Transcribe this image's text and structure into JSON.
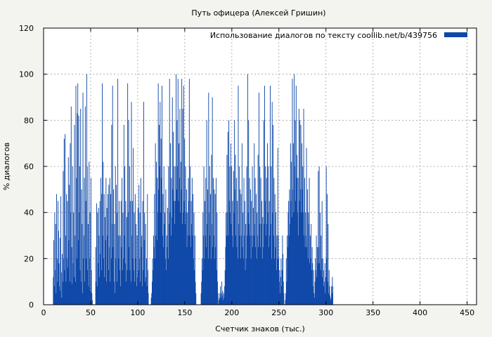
{
  "chart_data": {
    "type": "bar",
    "title": "Путь офицера (Алексей Гришин)",
    "xlabel": "Счетчик знаков (тыс.)",
    "ylabel": "% диалогов",
    "xlim": [
      0,
      460
    ],
    "ylim": [
      0,
      120
    ],
    "xticks": [
      "0",
      "50",
      "100",
      "150",
      "200",
      "250",
      "300",
      "350",
      "400",
      "450"
    ],
    "yticks": [
      "0",
      "20",
      "40",
      "60",
      "80",
      "100",
      "120"
    ],
    "grid": true,
    "legend_position": "top-right",
    "series": [
      {
        "name": "Использование диалогов по тексту  coollib.net/b/439756",
        "color": "#0d47a8",
        "x_start": 10,
        "x_step": 0.5,
        "values": [
          12,
          28,
          8,
          40,
          15,
          35,
          5,
          48,
          20,
          10,
          45,
          32,
          18,
          8,
          29,
          6,
          47,
          14,
          3,
          22,
          10,
          58,
          20,
          72,
          15,
          74,
          30,
          10,
          48,
          20,
          45,
          16,
          64,
          28,
          52,
          10,
          70,
          40,
          86,
          25,
          9,
          60,
          18,
          40,
          12,
          78,
          30,
          10,
          95,
          55,
          20,
          83,
          96,
          28,
          82,
          40,
          60,
          15,
          85,
          10,
          50,
          35,
          5,
          92,
          20,
          30,
          55,
          10,
          86,
          45,
          20,
          100,
          60,
          15,
          35,
          8,
          62,
          20,
          40,
          6,
          55,
          15,
          5,
          2,
          0,
          0,
          0,
          0,
          0,
          0,
          25,
          10,
          44,
          8,
          40,
          18,
          42,
          30,
          12,
          45,
          22,
          55,
          15,
          48,
          96,
          30,
          62,
          20,
          48,
          12,
          38,
          28,
          55,
          10,
          42,
          30,
          48,
          15,
          52,
          25,
          55,
          10,
          48,
          20,
          78,
          35,
          95,
          25,
          50,
          10,
          35,
          5,
          60,
          20,
          52,
          10,
          40,
          98,
          30,
          20,
          45,
          15,
          30,
          8,
          45,
          25,
          55,
          15,
          40,
          20,
          78,
          30,
          60,
          18,
          45,
          10,
          38,
          15,
          96,
          40,
          80,
          25,
          60,
          15,
          45,
          10,
          88,
          30,
          45,
          20,
          68,
          15,
          40,
          10,
          48,
          20,
          35,
          8,
          30,
          12,
          42,
          15,
          52,
          20,
          40,
          10,
          55,
          25,
          30,
          8,
          45,
          15,
          88,
          28,
          40,
          10,
          35,
          12,
          20,
          8,
          48,
          15,
          5,
          0,
          0,
          0,
          0,
          0,
          3,
          5,
          10,
          20,
          15,
          30,
          25,
          48,
          20,
          70,
          30,
          62,
          28,
          55,
          40,
          96,
          50,
          78,
          60,
          88,
          40,
          72,
          55,
          95,
          30,
          48,
          25,
          60,
          35,
          40,
          20,
          50,
          15,
          30,
          25,
          42,
          20,
          60,
          35,
          98,
          40,
          70,
          30,
          55,
          38,
          90,
          50,
          75,
          45,
          60,
          35,
          45,
          60,
          100,
          50,
          80,
          60,
          98,
          45,
          70,
          55,
          85,
          40,
          62,
          50,
          98,
          35,
          85,
          40,
          95,
          45,
          72,
          35,
          60,
          40,
          50,
          25,
          40,
          30,
          55,
          45,
          98,
          30,
          60,
          25,
          45,
          35,
          55,
          30,
          48,
          20,
          40,
          15,
          30,
          10,
          5,
          0,
          0,
          0,
          0,
          0,
          0,
          0,
          0,
          0,
          0,
          5,
          10,
          20,
          15,
          40,
          30,
          60,
          20,
          45,
          30,
          55,
          25,
          80,
          35,
          50,
          20,
          92,
          40,
          60,
          30,
          48,
          20,
          65,
          35,
          90,
          25,
          55,
          30,
          50,
          20,
          48,
          25,
          55,
          15,
          40,
          10,
          5,
          0,
          2,
          3,
          5,
          8,
          3,
          5,
          10,
          4,
          6,
          2,
          5,
          3,
          8,
          15,
          25,
          40,
          30,
          65,
          40,
          75,
          30,
          80,
          45,
          60,
          40,
          70,
          35,
          60,
          30,
          45,
          25,
          58,
          40,
          80,
          50,
          65,
          30,
          55,
          25,
          45,
          20,
          95,
          35,
          60,
          30,
          50,
          20,
          48,
          30,
          70,
          25,
          40,
          20,
          55,
          30,
          45,
          15,
          35,
          20,
          60,
          30,
          100,
          40,
          80,
          35,
          55,
          30,
          50,
          20,
          45,
          30,
          60,
          25,
          42,
          30,
          70,
          35,
          55,
          25,
          48,
          20,
          40,
          30,
          65,
          25,
          92,
          35,
          60,
          25,
          55,
          35,
          45,
          20,
          38,
          25,
          80,
          35,
          95,
          45,
          60,
          30,
          55,
          35,
          70,
          40,
          60,
          25,
          45,
          30,
          95,
          35,
          60,
          20,
          88,
          40,
          78,
          30,
          55,
          20,
          48,
          25,
          40,
          15,
          30,
          20,
          68,
          30,
          20,
          10,
          15,
          5,
          12,
          20,
          8,
          15,
          30,
          22,
          10,
          5,
          0,
          0,
          2,
          5,
          20,
          10,
          30,
          25,
          40,
          45,
          30,
          50,
          35,
          70,
          45,
          62,
          38,
          98,
          50,
          70,
          40,
          100,
          60,
          80,
          45,
          95,
          55,
          65,
          40,
          55,
          30,
          85,
          45,
          80,
          50,
          78,
          40,
          70,
          50,
          60,
          40,
          85,
          30,
          55,
          25,
          40,
          30,
          68,
          25,
          50,
          20,
          40,
          35,
          55,
          18,
          30,
          20,
          35,
          15,
          25,
          18,
          8,
          15,
          5,
          3,
          10,
          20,
          15,
          30,
          12,
          25,
          18,
          58,
          25,
          60,
          18,
          40,
          15,
          30,
          20,
          45,
          12,
          20,
          15,
          8,
          10,
          18,
          5,
          12,
          60,
          20,
          48,
          10,
          35,
          5,
          15,
          8,
          4,
          2,
          3,
          8,
          5,
          12,
          8
        ]
      }
    ]
  }
}
